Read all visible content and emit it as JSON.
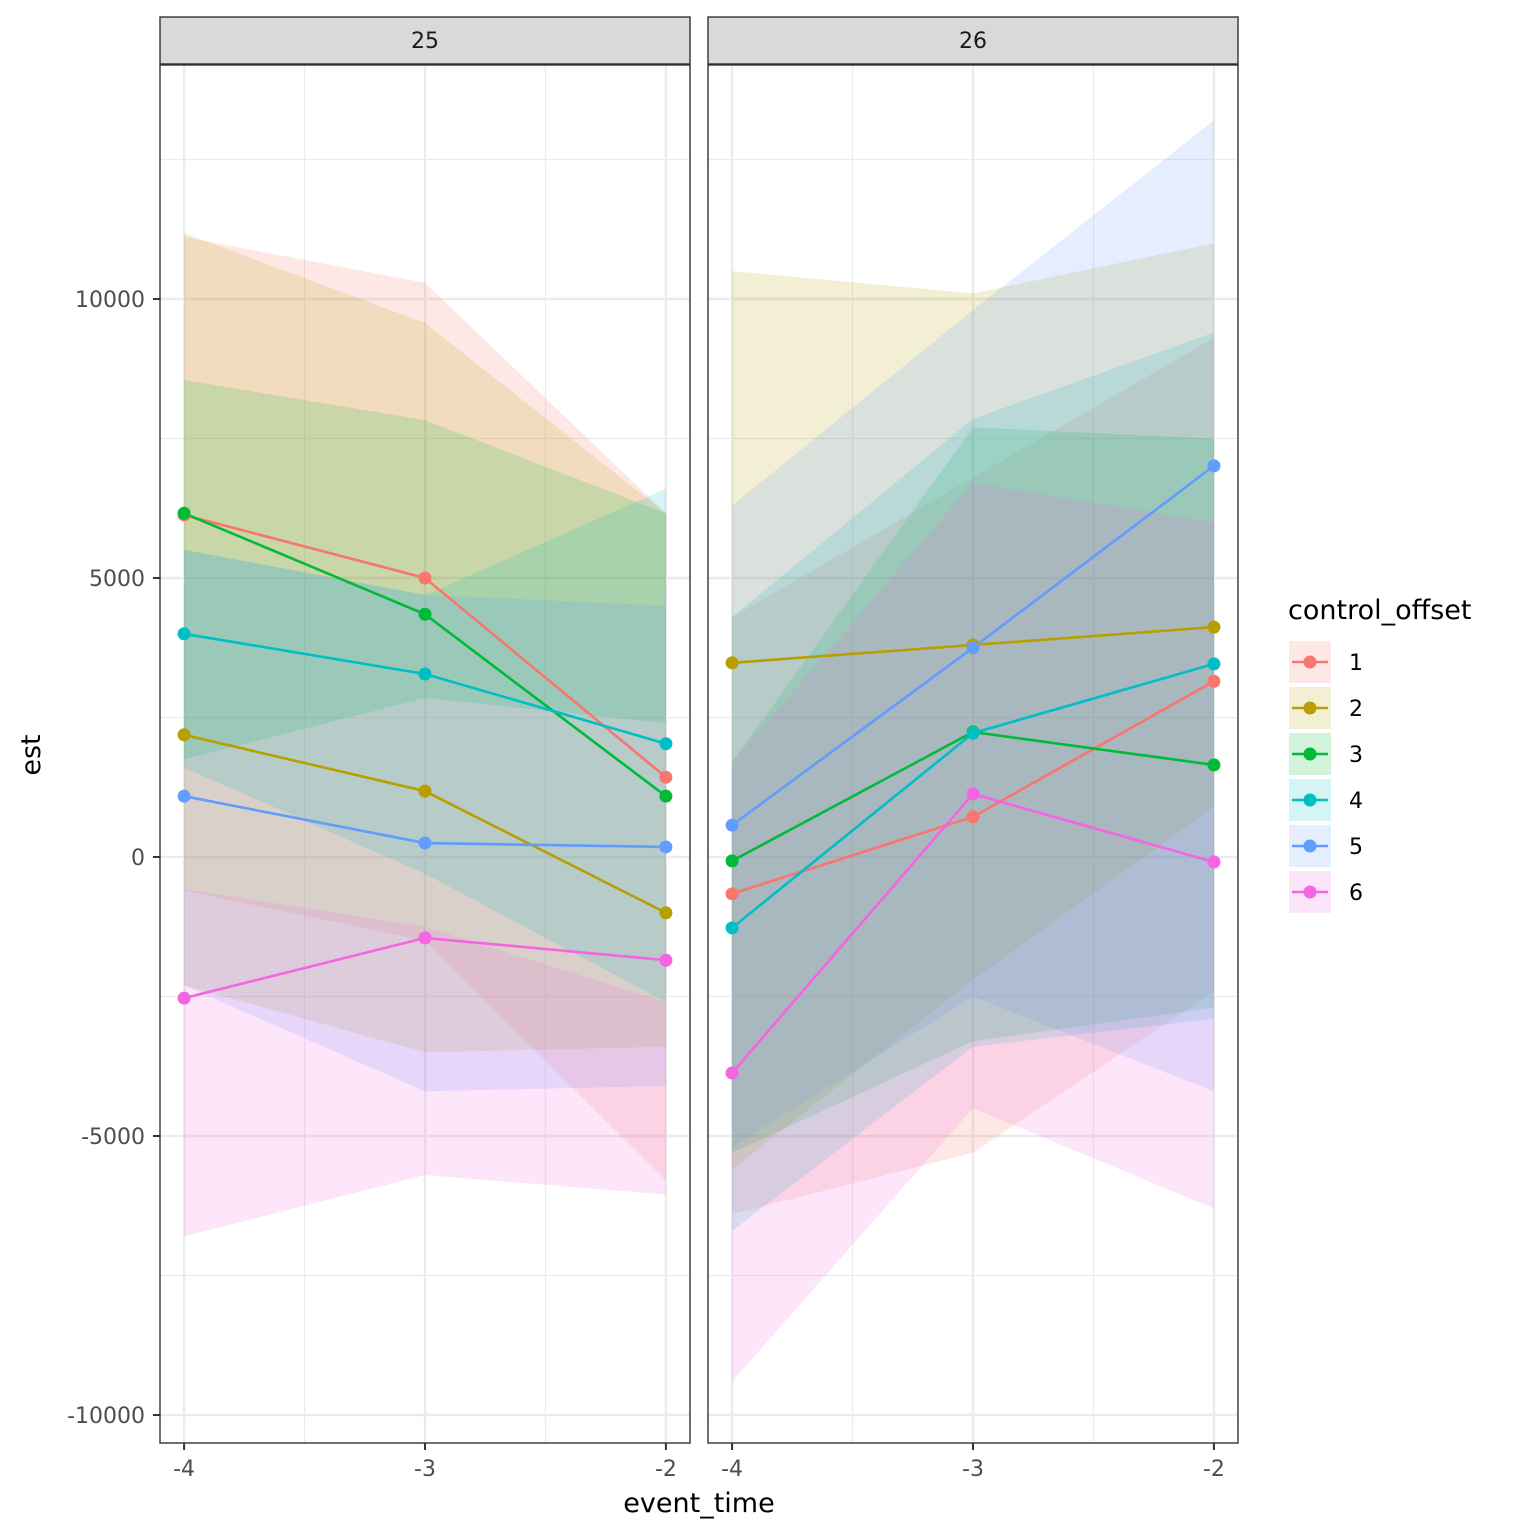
{
  "chart_data": {
    "type": "line",
    "xlabel": "event_time",
    "ylabel": "est",
    "ylim": [
      -10500,
      14200
    ],
    "xlim": [
      -4.1,
      -1.9
    ],
    "x": [
      -4,
      -3,
      -2
    ],
    "x_tick_labels": [
      "-4",
      "-3",
      "-2"
    ],
    "y_ticks": [
      10000,
      5000,
      0,
      -5000,
      -10000
    ],
    "y_tick_labels": [
      "10000",
      "5000",
      "0",
      "-5000",
      "-10000"
    ],
    "grid": true,
    "legend": {
      "title": "control_offset",
      "position": "right",
      "entries": [
        "1",
        "2",
        "3",
        "4",
        "5",
        "6"
      ]
    },
    "colors": [
      "#F8766D",
      "#B79F00",
      "#00BA38",
      "#00BFC4",
      "#619CFF",
      "#F564E3"
    ],
    "panels": [
      {
        "label": "25",
        "series": [
          {
            "name": "1",
            "values": [
              6130,
              5000,
              1430
            ],
            "lower": [
              -600,
              -1500,
              -5800
            ],
            "upper": [
              11110,
              10290,
              6160
            ]
          },
          {
            "name": "2",
            "values": [
              2190,
              1180,
              -1000
            ],
            "lower": [
              -2300,
              -3500,
              -3400
            ],
            "upper": [
              11180,
              9570,
              6160
            ]
          },
          {
            "name": "3",
            "values": [
              6160,
              4350,
              1090
            ],
            "lower": [
              1750,
              2850,
              2400
            ],
            "upper": [
              8550,
              7830,
              6160
            ]
          },
          {
            "name": "4",
            "values": [
              4000,
              3280,
              2030
            ],
            "lower": [
              1600,
              -300,
              -2600
            ],
            "upper": [
              5510,
              4690,
              6600
            ]
          },
          {
            "name": "5",
            "values": [
              1090,
              250,
              180
            ],
            "lower": [
              -2300,
              -4200,
              -4100
            ],
            "upper": [
              5500,
              4700,
              4500
            ]
          },
          {
            "name": "6",
            "values": [
              -2530,
              -1450,
              -1850
            ],
            "lower": [
              -6800,
              -5700,
              -6050
            ],
            "upper": [
              -570,
              -1250,
              -2600
            ]
          }
        ]
      },
      {
        "label": "26",
        "series": [
          {
            "name": "1",
            "values": [
              -660,
              720,
              3150
            ],
            "lower": [
              -6400,
              -5300,
              -2400
            ],
            "upper": [
              4300,
              6800,
              9300
            ]
          },
          {
            "name": "2",
            "values": [
              3480,
              3800,
              4120
            ],
            "lower": [
              -5600,
              -2200,
              900
            ],
            "upper": [
              10500,
              10100,
              11000
            ]
          },
          {
            "name": "3",
            "values": [
              -70,
              2240,
              1650
            ],
            "lower": [
              -5300,
              -3300,
              -2700
            ],
            "upper": [
              1700,
              7700,
              7500
            ]
          },
          {
            "name": "4",
            "values": [
              -1270,
              2220,
              3460
            ],
            "lower": [
              -6700,
              -3400,
              -2900
            ],
            "upper": [
              4300,
              7850,
              9400
            ]
          },
          {
            "name": "5",
            "values": [
              570,
              3750,
              7010
            ],
            "lower": [
              -5200,
              -2500,
              -4200
            ],
            "upper": [
              6300,
              9800,
              13200
            ]
          },
          {
            "name": "6",
            "values": [
              -3870,
              1130,
              -90
            ],
            "lower": [
              -9400,
              -4500,
              -6300
            ],
            "upper": [
              1700,
              6700,
              6000
            ]
          }
        ]
      }
    ]
  }
}
